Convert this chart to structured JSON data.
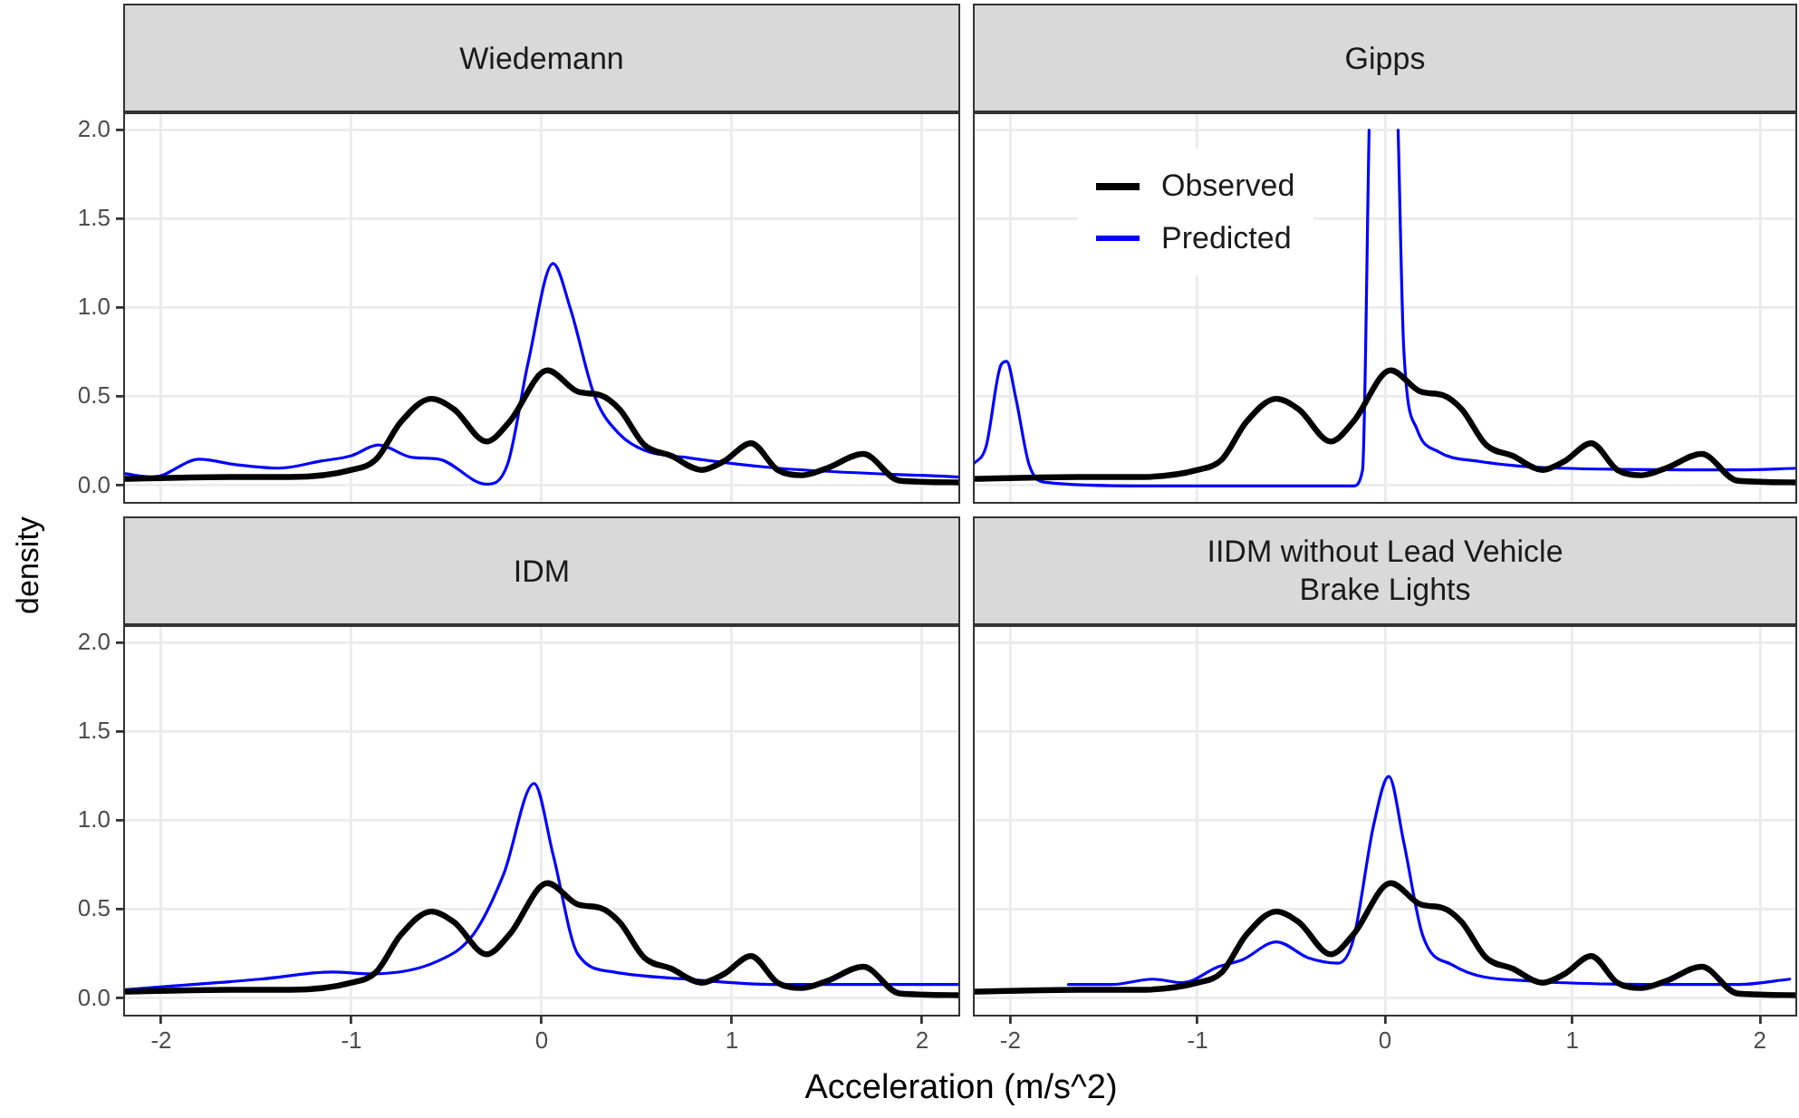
{
  "chart_data": [
    {
      "type": "line",
      "title": "Wiedemann",
      "ylabel": "density",
      "xlim": [
        -2.2,
        2.2
      ],
      "ylim": [
        -0.1,
        2.1
      ],
      "xticks": [
        -2,
        -1,
        0,
        1,
        2
      ],
      "yticks": [
        {
          "value": 0,
          "label": "0.0"
        },
        {
          "value": 0.5,
          "label": "0.5"
        },
        {
          "value": 1,
          "label": "1.0"
        },
        {
          "value": 1.5,
          "label": "1.5"
        },
        {
          "value": 2,
          "label": "2.0"
        }
      ],
      "grid": true,
      "tick_labels": "y",
      "series": [
        {
          "color": "#000000",
          "x": [
            -2.2,
            -1.64,
            -1.32,
            -1.0,
            -0.87,
            -0.74,
            -0.58,
            -0.46,
            -0.29,
            -0.17,
            0.03,
            0.19,
            0.31,
            0.41,
            0.54,
            0.68,
            0.84,
            0.96,
            1.1,
            1.24,
            1.37,
            1.5,
            1.69,
            1.88,
            2.2
          ],
          "values": [
            0.04,
            0.05,
            0.05,
            0.09,
            0.15,
            0.36,
            0.49,
            0.43,
            0.25,
            0.36,
            0.65,
            0.53,
            0.51,
            0.43,
            0.23,
            0.17,
            0.09,
            0.14,
            0.24,
            0.09,
            0.06,
            0.1,
            0.18,
            0.03,
            0.02
          ]
        },
        {
          "color": "#0000ff",
          "x": [
            -2.2,
            -2.04,
            -1.8,
            -1.61,
            -1.38,
            -1.16,
            -1.0,
            -0.86,
            -0.68,
            -0.54,
            -0.29,
            -0.18,
            -0.07,
            0.06,
            0.15,
            0.28,
            0.41,
            0.54,
            0.76,
            1.24,
            2.2
          ],
          "values": [
            0.07,
            0.05,
            0.15,
            0.12,
            0.1,
            0.14,
            0.17,
            0.23,
            0.16,
            0.15,
            0.01,
            0.12,
            0.7,
            1.25,
            1.0,
            0.5,
            0.29,
            0.2,
            0.16,
            0.1,
            0.05
          ]
        }
      ]
    },
    {
      "type": "line",
      "title": "Gipps",
      "xlim": [
        -2.2,
        2.2
      ],
      "ylim": [
        -0.1,
        2.1
      ],
      "xticks": [
        -2,
        -1,
        0,
        1,
        2
      ],
      "yticks": [
        0,
        0.5,
        1,
        1.5,
        2
      ],
      "grid": true,
      "tick_labels": false,
      "legend": "top",
      "series": [
        {
          "name": "Observed",
          "color": "#000000",
          "x": [
            -2.2,
            -1.64,
            -1.32,
            -1.0,
            -0.87,
            -0.74,
            -0.58,
            -0.46,
            -0.29,
            -0.17,
            0.03,
            0.19,
            0.31,
            0.41,
            0.54,
            0.68,
            0.84,
            0.96,
            1.1,
            1.24,
            1.37,
            1.5,
            1.69,
            1.88,
            2.2
          ],
          "values": [
            0.04,
            0.05,
            0.05,
            0.09,
            0.15,
            0.36,
            0.49,
            0.43,
            0.25,
            0.36,
            0.65,
            0.53,
            0.51,
            0.43,
            0.23,
            0.17,
            0.09,
            0.14,
            0.24,
            0.09,
            0.06,
            0.1,
            0.18,
            0.03,
            0.02
          ]
        },
        {
          "name": "Predicted",
          "color": "#0000ff",
          "x": [
            -2.2,
            -2.13,
            -2.05,
            -2.02,
            -1.97,
            -1.9,
            -1.81,
            -1.3,
            -0.17,
            -0.12,
            -0.085,
            0.0,
            0.07,
            0.1,
            0.17,
            0.29,
            0.49,
            0.93,
            1.89,
            2.2
          ],
          "values": [
            0.12,
            0.22,
            0.68,
            0.7,
            0.49,
            0.12,
            0.02,
            0.0,
            0.0,
            0.09,
            2.0,
            null,
            2.0,
            0.77,
            0.32,
            0.19,
            0.14,
            0.1,
            0.09,
            0.1
          ]
        }
      ]
    },
    {
      "type": "line",
      "title": "IDM",
      "xlabel": "Acceleration (m/s^2)",
      "xlim": [
        -2.2,
        2.2
      ],
      "ylim": [
        -0.1,
        2.1
      ],
      "xticks": [
        -2,
        -1,
        0,
        1,
        2
      ],
      "yticks": [
        {
          "value": 0,
          "label": "0.0"
        },
        {
          "value": 0.5,
          "label": "0.5"
        },
        {
          "value": 1,
          "label": "1.0"
        },
        {
          "value": 1.5,
          "label": "1.5"
        },
        {
          "value": 2,
          "label": "2.0"
        }
      ],
      "grid": true,
      "series": [
        {
          "color": "#000000",
          "x": [
            -2.2,
            -1.64,
            -1.32,
            -1.0,
            -0.87,
            -0.74,
            -0.58,
            -0.46,
            -0.29,
            -0.17,
            0.03,
            0.19,
            0.31,
            0.41,
            0.54,
            0.68,
            0.84,
            0.96,
            1.1,
            1.24,
            1.37,
            1.5,
            1.69,
            1.88,
            2.2
          ],
          "values": [
            0.04,
            0.05,
            0.05,
            0.09,
            0.15,
            0.36,
            0.49,
            0.43,
            0.25,
            0.36,
            0.65,
            0.53,
            0.51,
            0.43,
            0.23,
            0.17,
            0.09,
            0.14,
            0.24,
            0.09,
            0.06,
            0.1,
            0.18,
            0.03,
            0.02
          ]
        },
        {
          "color": "#0000ff",
          "x": [
            -2.2,
            -1.96,
            -1.48,
            -1.1,
            -0.9,
            -0.55,
            -0.36,
            -0.2,
            -0.04,
            0.06,
            0.19,
            0.38,
            0.76,
            1.24,
            2.2
          ],
          "values": [
            0.05,
            0.07,
            0.11,
            0.15,
            0.14,
            0.21,
            0.36,
            0.7,
            1.21,
            0.81,
            0.25,
            0.15,
            0.11,
            0.08,
            0.08
          ]
        }
      ]
    },
    {
      "type": "line",
      "title": "IIDM without Lead Vehicle\nBrake Lights",
      "xlim": [
        -2.2,
        2.2
      ],
      "ylim": [
        -0.1,
        2.1
      ],
      "xticks": [
        -2,
        -1,
        0,
        1,
        2
      ],
      "yticks": [
        0,
        0.5,
        1,
        1.5,
        2
      ],
      "grid": true,
      "tick_labels": "x",
      "series": [
        {
          "color": "#000000",
          "x": [
            -2.2,
            -1.64,
            -1.32,
            -1.0,
            -0.87,
            -0.74,
            -0.58,
            -0.46,
            -0.29,
            -0.17,
            0.03,
            0.19,
            0.31,
            0.41,
            0.54,
            0.68,
            0.84,
            0.96,
            1.1,
            1.24,
            1.37,
            1.5,
            1.69,
            1.88,
            2.2
          ],
          "values": [
            0.04,
            0.05,
            0.05,
            0.09,
            0.15,
            0.36,
            0.49,
            0.43,
            0.25,
            0.36,
            0.65,
            0.53,
            0.51,
            0.43,
            0.23,
            0.17,
            0.09,
            0.14,
            0.24,
            0.09,
            0.06,
            0.1,
            0.18,
            0.03,
            0.02
          ]
        },
        {
          "color": "#0000ff",
          "x": [
            -1.69,
            -1.46,
            -1.24,
            -1.08,
            -0.89,
            -0.76,
            -0.58,
            -0.41,
            -0.25,
            -0.17,
            -0.06,
            0.02,
            0.1,
            0.2,
            0.36,
            0.77,
            1.57,
            1.89,
            2.16
          ],
          "values": [
            0.08,
            0.08,
            0.11,
            0.09,
            0.18,
            0.22,
            0.32,
            0.23,
            0.2,
            0.33,
            0.98,
            1.25,
            0.88,
            0.36,
            0.19,
            0.1,
            0.08,
            0.08,
            0.11
          ]
        }
      ]
    }
  ]
}
